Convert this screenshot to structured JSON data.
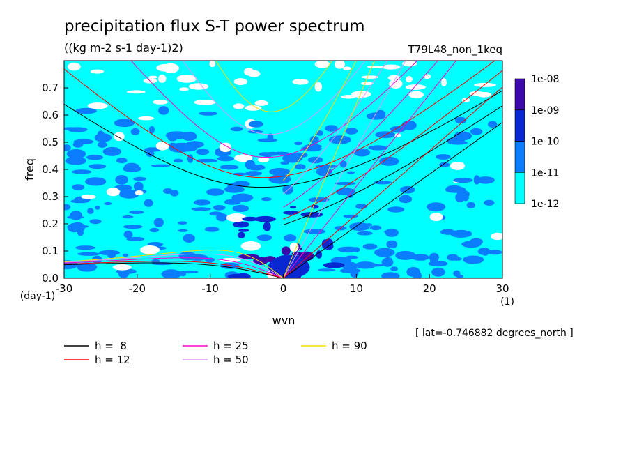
{
  "chart_data": {
    "type": "heatmap",
    "title": "precipitation flux S-T power spectrum",
    "subtitle": "((kg m-2 s-1 day-1)2)",
    "experiment": "T79L48_non_1keq",
    "xlabel": "wvn",
    "ylabel": "freq",
    "x_unit": "(1)",
    "y_unit": "(day-1)",
    "xlim": [
      -30,
      30
    ],
    "ylim": [
      0,
      0.8
    ],
    "x_ticks": [
      -30,
      -20,
      -10,
      0,
      10,
      20,
      30
    ],
    "y_ticks": [
      0.0,
      0.1,
      0.2,
      0.3,
      0.4,
      0.5,
      0.6,
      0.7
    ],
    "x_tick_labels": [
      "-30",
      "-20",
      "-10",
      "0",
      "10",
      "20",
      "30"
    ],
    "y_tick_labels": [
      "0.0",
      "0.1",
      "0.2",
      "0.3",
      "0.4",
      "0.5",
      "0.6",
      "0.7"
    ],
    "annotation": "[ lat=-0.746882 degrees_north ]",
    "colorbar": {
      "levels": [
        "1e-12",
        "1e-11",
        "1e-10",
        "1e-09",
        "1e-08"
      ],
      "colors": [
        "#00ffff",
        "#0a7dff",
        "#0a28d2",
        "#3c0aaa"
      ],
      "unshaded_color": "#ffffff"
    },
    "field_shading": {
      "background_level_color": "#00ffff",
      "patch_colors": [
        "#0a7dff",
        "#0a28d2",
        "#3c0aaa",
        "#ffffff"
      ]
    },
    "dispersion_curves": [
      {
        "label": "h =  8",
        "h": 8,
        "color": "#000000"
      },
      {
        "label": "h = 12",
        "h": 12,
        "color": "#ff0000"
      },
      {
        "label": "h = 25",
        "h": 25,
        "color": "#ff00c8"
      },
      {
        "label": "h = 50",
        "h": 50,
        "color": "#dc96ff"
      },
      {
        "label": "h = 90",
        "h": 90,
        "color": "#ffdc00"
      }
    ]
  }
}
